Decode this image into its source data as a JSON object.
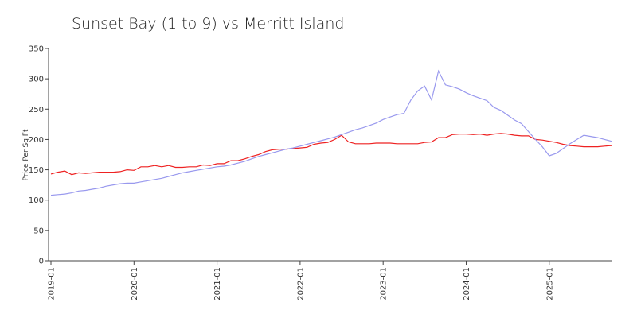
{
  "chart_data": {
    "type": "line",
    "title": "Sunset Bay (1 to 9) vs Merritt Island",
    "y_label": "Price Per Sq Ft",
    "x": [
      "2019-01",
      "2019-02",
      "2019-03",
      "2019-04",
      "2019-05",
      "2019-06",
      "2019-07",
      "2019-08",
      "2019-09",
      "2019-10",
      "2019-11",
      "2019-12",
      "2020-01",
      "2020-02",
      "2020-03",
      "2020-04",
      "2020-05",
      "2020-06",
      "2020-07",
      "2020-08",
      "2020-09",
      "2020-10",
      "2020-11",
      "2020-12",
      "2021-01",
      "2021-02",
      "2021-03",
      "2021-04",
      "2021-05",
      "2021-06",
      "2021-07",
      "2021-08",
      "2021-09",
      "2021-10",
      "2021-11",
      "2021-12",
      "2022-01",
      "2022-02",
      "2022-03",
      "2022-04",
      "2022-05",
      "2022-06",
      "2022-07",
      "2022-08",
      "2022-09",
      "2022-10",
      "2022-11",
      "2022-12",
      "2023-01",
      "2023-02",
      "2023-03",
      "2023-04",
      "2023-05",
      "2023-06",
      "2023-07",
      "2023-08",
      "2023-09",
      "2023-10",
      "2023-11",
      "2023-12",
      "2024-01",
      "2024-02",
      "2024-03",
      "2024-04",
      "2024-05",
      "2024-06",
      "2024-07",
      "2024-08",
      "2024-09",
      "2024-10",
      "2024-11",
      "2024-12",
      "2025-01",
      "2025-02",
      "2025-03",
      "2025-04",
      "2025-05",
      "2025-06",
      "2025-07",
      "2025-08",
      "2025-09",
      "2025-10"
    ],
    "series": [
      {
        "color": "#ee2222",
        "values": [
          143,
          146,
          148,
          142,
          145,
          144,
          145,
          146,
          146,
          146,
          147,
          150,
          149,
          155,
          155,
          157,
          155,
          157,
          154,
          154,
          155,
          155,
          158,
          157,
          160,
          160,
          165,
          165,
          168,
          172,
          175,
          180,
          183,
          184,
          184,
          185,
          186,
          187,
          192,
          194,
          195,
          200,
          207,
          196,
          193,
          193,
          193,
          194,
          194,
          194,
          193,
          193,
          193,
          193,
          195,
          196,
          203,
          203,
          208,
          209,
          209,
          208,
          209,
          207,
          209,
          210,
          209,
          207,
          206,
          206,
          200,
          199,
          197,
          195,
          192,
          190,
          189,
          188,
          188,
          188,
          189,
          190
        ]
      },
      {
        "color": "#9999ee",
        "values": [
          108,
          109,
          110,
          112,
          115,
          116,
          118,
          120,
          123,
          125,
          127,
          128,
          128,
          130,
          132,
          134,
          136,
          139,
          142,
          145,
          147,
          149,
          151,
          153,
          155,
          156,
          158,
          161,
          164,
          168,
          172,
          175,
          178,
          181,
          184,
          186,
          189,
          192,
          195,
          198,
          201,
          204,
          208,
          212,
          216,
          219,
          223,
          227,
          233,
          237,
          241,
          243,
          265,
          280,
          288,
          265,
          313,
          290,
          287,
          283,
          277,
          272,
          268,
          264,
          253,
          248,
          240,
          232,
          226,
          213,
          200,
          188,
          173,
          177,
          185,
          193,
          200,
          207,
          205,
          203,
          200,
          197
        ]
      }
    ],
    "xticks": [
      "2019-01",
      "2020-01",
      "2021-01",
      "2022-01",
      "2023-01",
      "2024-01",
      "2025-01"
    ],
    "ylim": [
      0,
      350
    ],
    "yticks": [
      0,
      50,
      100,
      150,
      200,
      250,
      300,
      350
    ]
  }
}
